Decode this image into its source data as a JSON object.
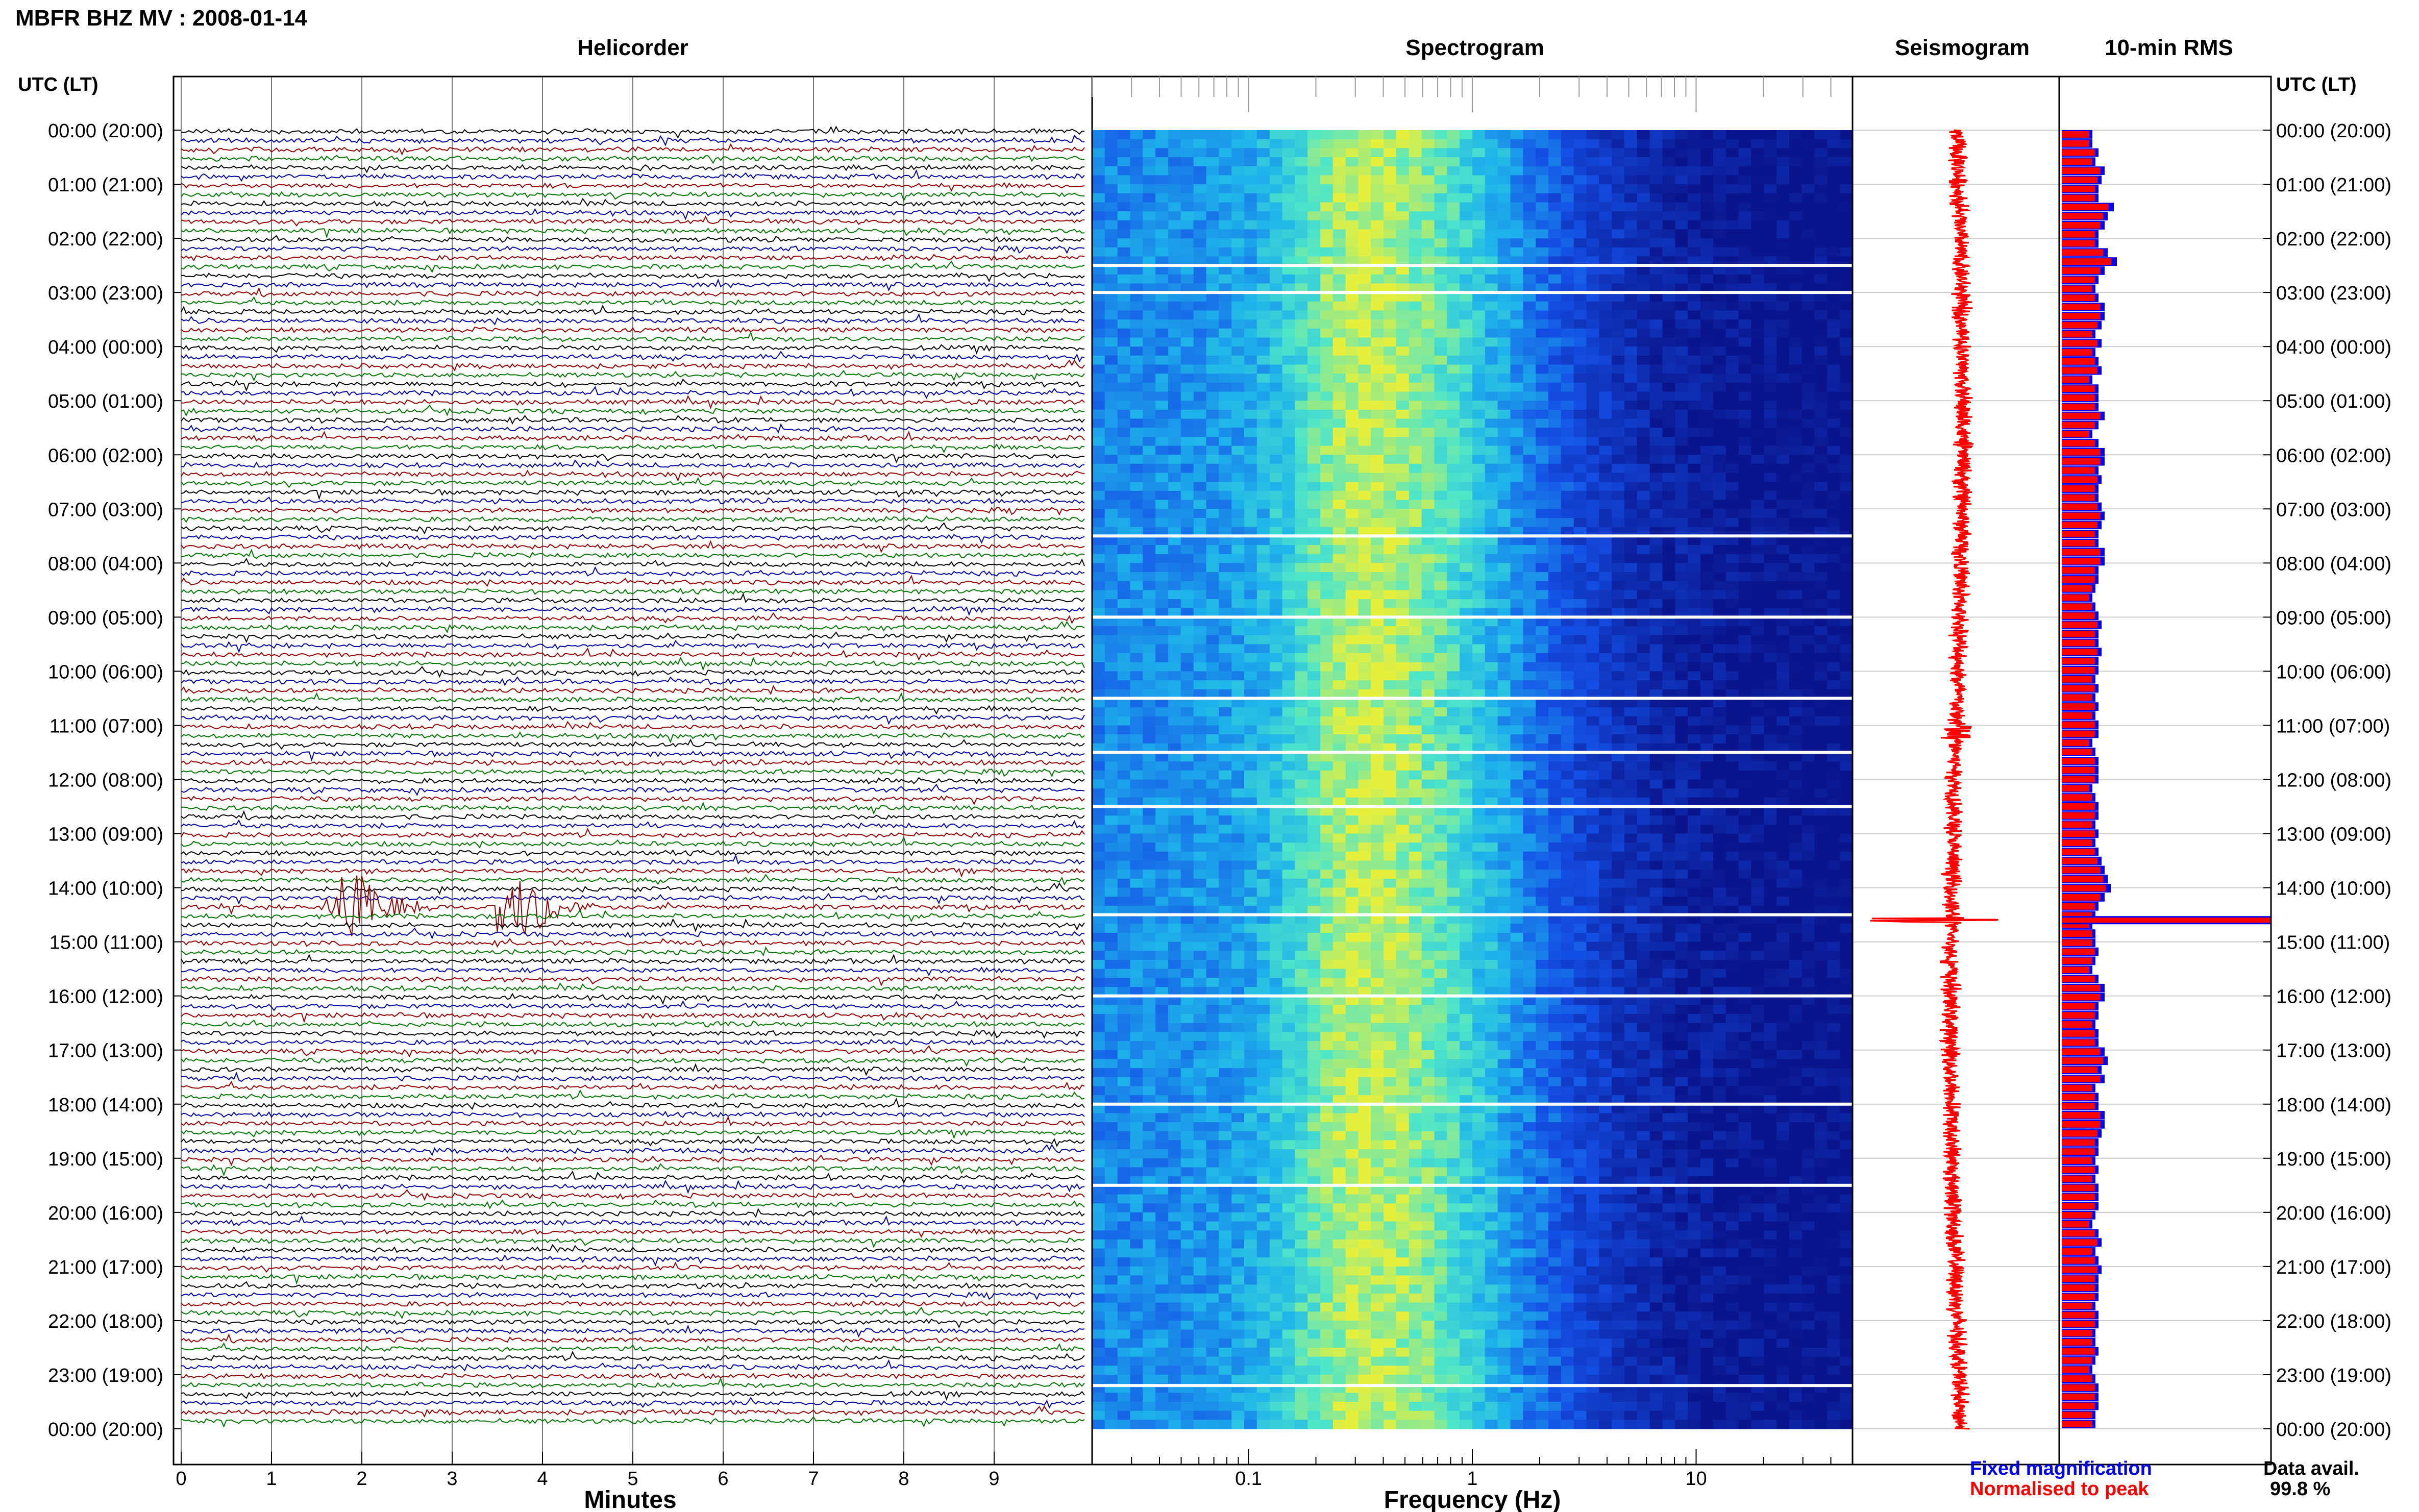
{
  "title": "MBFR BHZ MV : 2008-01-14",
  "panels": {
    "helicorder": "Helicorder",
    "spectrogram": "Spectrogram",
    "seismogram": "Seismogram",
    "rms": "10-min RMS"
  },
  "time_axis_label": "UTC (LT)",
  "time_labels": [
    "00:00 (20:00)",
    "01:00 (21:00)",
    "02:00 (22:00)",
    "03:00 (23:00)",
    "04:00 (00:00)",
    "05:00 (01:00)",
    "06:00 (02:00)",
    "07:00 (03:00)",
    "08:00 (04:00)",
    "09:00 (05:00)",
    "10:00 (06:00)",
    "11:00 (07:00)",
    "12:00 (08:00)",
    "13:00 (09:00)",
    "14:00 (10:00)",
    "15:00 (11:00)",
    "16:00 (12:00)",
    "17:00 (13:00)",
    "18:00 (14:00)",
    "19:00 (15:00)",
    "20:00 (16:00)",
    "21:00 (17:00)",
    "22:00 (18:00)",
    "23:00 (19:00)",
    "00:00 (20:00)"
  ],
  "minutes_label": "Minutes",
  "minutes_ticks": [
    "0",
    "1",
    "2",
    "3",
    "4",
    "5",
    "6",
    "7",
    "8",
    "9"
  ],
  "frequency_label": "Frequency (Hz)",
  "frequency_ticks": [
    "0.1",
    "1",
    "10"
  ],
  "legend": {
    "fixed": "Fixed magnification",
    "normalised": "Normalised to peak",
    "fixed_color": "#0000ff",
    "normalised_color": "#ff0000"
  },
  "data_avail": {
    "label": "Data avail.",
    "value": "99.8 %"
  },
  "colors": {
    "trace_colors": [
      "#000000",
      "#0000aa",
      "#990000",
      "#007700"
    ],
    "seismogram": "#ff0000",
    "rms_fixed": "#0000ff",
    "rms_norm": "#ff0000"
  },
  "chart_data": [
    {
      "type": "line",
      "name": "helicorder",
      "xlabel": "Minutes",
      "xlim": [
        0,
        10
      ],
      "ylim_hours": [
        0,
        24
      ],
      "rows_per_hour": 6,
      "events": [
        {
          "hour": 14.33,
          "minute_start": 1.6,
          "minute_end": 2.8,
          "amplitude": "large"
        },
        {
          "hour": 14.33,
          "minute_start": 3.4,
          "minute_end": 4.6,
          "amplitude": "large"
        }
      ]
    },
    {
      "type": "heatmap",
      "name": "spectrogram",
      "xlabel": "Frequency (Hz)",
      "xscale": "log",
      "xlim": [
        0.02,
        50
      ],
      "peak_frequency_band": [
        0.2,
        0.5
      ],
      "gaps_hours": [
        2.5,
        3.0,
        7.5,
        9.0,
        10.5,
        11.5,
        12.5,
        14.5,
        16.0,
        18.0,
        19.5,
        23.2
      ]
    },
    {
      "type": "bar",
      "name": "10-min RMS",
      "spike_hour": 14.6,
      "values": [
        0.5,
        0.5,
        0.6,
        0.55,
        0.7,
        0.65,
        0.6,
        0.6,
        0.85,
        0.75,
        0.7,
        0.6,
        0.6,
        0.75,
        0.9,
        0.7,
        0.6,
        0.55,
        0.6,
        0.7,
        0.7,
        0.65,
        0.55,
        0.65,
        0.55,
        0.6,
        0.65,
        0.5,
        0.6,
        0.6,
        0.6,
        0.7,
        0.6,
        0.5,
        0.6,
        0.7,
        0.7,
        0.6,
        0.65,
        0.6,
        0.6,
        0.65,
        0.7,
        0.65,
        0.6,
        0.6,
        0.7,
        0.7,
        0.6,
        0.6,
        0.55,
        0.5,
        0.55,
        0.6,
        0.65,
        0.6,
        0.6,
        0.65,
        0.6,
        0.6,
        0.55,
        0.6,
        0.55,
        0.6,
        0.55,
        0.6,
        0.6,
        0.5,
        0.55,
        0.6,
        0.6,
        0.6,
        0.5,
        0.55,
        0.6,
        0.6,
        0.55,
        0.6,
        0.55,
        0.6,
        0.65,
        0.7,
        0.75,
        0.8,
        0.7,
        0.6,
        0.55,
        0.5,
        0.55,
        0.55,
        0.6,
        0.55,
        0.5,
        0.6,
        0.7,
        0.7,
        0.6,
        0.6,
        0.55,
        0.6,
        0.6,
        0.7,
        0.75,
        0.65,
        0.7,
        0.55,
        0.6,
        0.6,
        0.7,
        0.7,
        0.65,
        0.6,
        0.6,
        0.55,
        0.6,
        0.55,
        0.6,
        0.6,
        0.6,
        0.55,
        0.5,
        0.6,
        0.65,
        0.55,
        0.6,
        0.65,
        0.6,
        0.6,
        0.6,
        0.55,
        0.6,
        0.6,
        0.55,
        0.55,
        0.6,
        0.55,
        0.5,
        0.55,
        0.6,
        0.6,
        0.6,
        0.55,
        0.55
      ]
    }
  ]
}
